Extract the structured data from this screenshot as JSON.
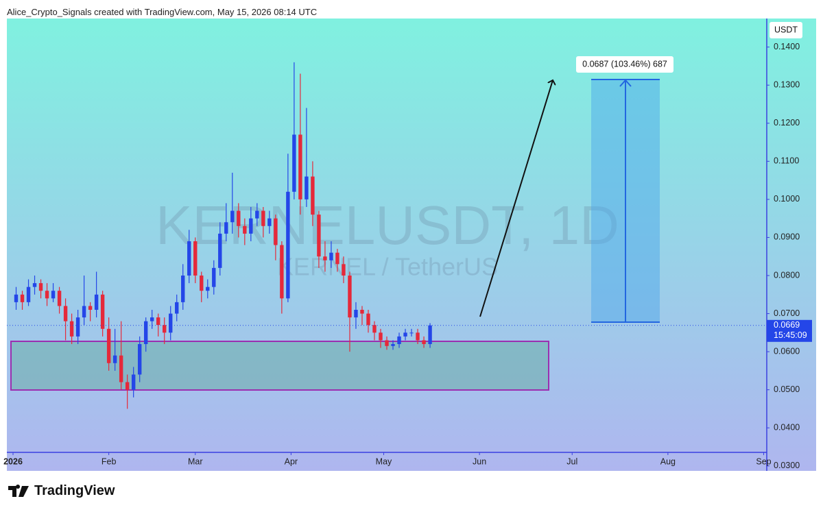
{
  "header": "Alice_Crypto_Signals created with TradingView.com, May 15, 2026 08:14 UTC",
  "logo": "TradingView",
  "chart_data": {
    "type": "candlestick",
    "watermark": "KERNELUSDT, 1D",
    "watermark_sub": "KERNEL / TetherUS",
    "currency": "USDT",
    "countdown": "15:45:09",
    "annotation": "0.0687 (103.46%) 687",
    "up_color": "#2446e8",
    "down_color": "#e5293a",
    "xlim": [
      -2,
      244
    ],
    "xticks": [
      {
        "value": 0,
        "label": "2026"
      },
      {
        "value": 31,
        "label": "Feb"
      },
      {
        "value": 59,
        "label": "Mar"
      },
      {
        "value": 90,
        "label": "Apr"
      },
      {
        "value": 120,
        "label": "May"
      },
      {
        "value": 151,
        "label": "Jun"
      },
      {
        "value": 181,
        "label": "Jul"
      },
      {
        "value": 212,
        "label": "Aug"
      },
      {
        "value": 243,
        "label": "Sep"
      }
    ],
    "ylim": [
      0.0287,
      0.1475
    ],
    "yticks": [
      {
        "value": 0.03,
        "label": "0.0300"
      },
      {
        "value": 0.04,
        "label": "0.0400"
      },
      {
        "value": 0.05,
        "label": "0.0500"
      },
      {
        "value": 0.06,
        "label": "0.0600"
      },
      {
        "value": 0.07,
        "label": "0.0700"
      },
      {
        "value": 0.08,
        "label": "0.0800"
      },
      {
        "value": 0.09,
        "label": "0.0900"
      },
      {
        "value": 0.1,
        "label": "0.1000"
      },
      {
        "value": 0.11,
        "label": "0.1100"
      },
      {
        "value": 0.12,
        "label": "0.1200"
      },
      {
        "value": 0.13,
        "label": "0.1300"
      },
      {
        "value": 0.14,
        "label": "0.1400"
      }
    ],
    "x": [
      1,
      3,
      5,
      7,
      9,
      11,
      13,
      15,
      17,
      19,
      21,
      23,
      25,
      27,
      29,
      31,
      33,
      35,
      37,
      39,
      41,
      43,
      45,
      47,
      49,
      51,
      53,
      55,
      57,
      59,
      61,
      63,
      65,
      67,
      69,
      71,
      73,
      75,
      77,
      79,
      81,
      83,
      85,
      87,
      89,
      91,
      93,
      95,
      97,
      99,
      101,
      103,
      105,
      107,
      109,
      111,
      113,
      115,
      117,
      119,
      121,
      123,
      125,
      127,
      129,
      131,
      133,
      135
    ],
    "open": [
      0.073,
      0.075,
      0.073,
      0.077,
      0.078,
      0.076,
      0.074,
      0.076,
      0.072,
      0.068,
      0.064,
      0.069,
      0.072,
      0.071,
      0.075,
      0.066,
      0.057,
      0.059,
      0.052,
      0.05,
      0.054,
      0.062,
      0.068,
      0.069,
      0.067,
      0.065,
      0.07,
      0.073,
      0.08,
      0.089,
      0.08,
      0.076,
      0.077,
      0.082,
      0.091,
      0.094,
      0.097,
      0.093,
      0.091,
      0.095,
      0.097,
      0.093,
      0.095,
      0.088,
      0.074,
      0.102,
      0.117,
      0.1,
      0.106,
      0.096,
      0.085,
      0.084,
      0.086,
      0.083,
      0.08,
      0.069,
      0.071,
      0.07,
      0.067,
      0.065,
      0.063,
      0.0615,
      0.062,
      0.064,
      0.065,
      0.065,
      0.063,
      0.062
    ],
    "high": [
      0.077,
      0.076,
      0.079,
      0.08,
      0.079,
      0.078,
      0.078,
      0.077,
      0.074,
      0.07,
      0.071,
      0.08,
      0.073,
      0.081,
      0.076,
      0.069,
      0.066,
      0.068,
      0.054,
      0.056,
      0.064,
      0.069,
      0.071,
      0.07,
      0.069,
      0.072,
      0.075,
      0.083,
      0.092,
      0.09,
      0.081,
      0.079,
      0.084,
      0.094,
      0.099,
      0.107,
      0.099,
      0.095,
      0.098,
      0.099,
      0.098,
      0.097,
      0.096,
      0.089,
      0.112,
      0.136,
      0.133,
      0.124,
      0.11,
      0.097,
      0.089,
      0.089,
      0.087,
      0.085,
      0.081,
      0.073,
      0.072,
      0.071,
      0.068,
      0.066,
      0.064,
      0.063,
      0.065,
      0.066,
      0.066,
      0.066,
      0.064,
      0.0675
    ],
    "low": [
      0.071,
      0.071,
      0.072,
      0.075,
      0.074,
      0.072,
      0.073,
      0.07,
      0.063,
      0.062,
      0.062,
      0.067,
      0.068,
      0.069,
      0.064,
      0.055,
      0.055,
      0.05,
      0.045,
      0.048,
      0.052,
      0.06,
      0.066,
      0.064,
      0.062,
      0.063,
      0.068,
      0.071,
      0.078,
      0.078,
      0.073,
      0.074,
      0.075,
      0.08,
      0.089,
      0.091,
      0.09,
      0.088,
      0.089,
      0.093,
      0.09,
      0.091,
      0.084,
      0.07,
      0.073,
      0.1,
      0.096,
      0.098,
      0.093,
      0.082,
      0.081,
      0.082,
      0.081,
      0.078,
      0.06,
      0.066,
      0.067,
      0.065,
      0.063,
      0.061,
      0.0605,
      0.0605,
      0.061,
      0.063,
      0.064,
      0.062,
      0.061,
      0.061
    ],
    "close": [
      0.075,
      0.073,
      0.077,
      0.078,
      0.076,
      0.074,
      0.076,
      0.072,
      0.068,
      0.064,
      0.069,
      0.072,
      0.071,
      0.075,
      0.066,
      0.057,
      0.059,
      0.052,
      0.05,
      0.054,
      0.062,
      0.068,
      0.069,
      0.067,
      0.065,
      0.07,
      0.073,
      0.08,
      0.089,
      0.08,
      0.076,
      0.077,
      0.082,
      0.091,
      0.094,
      0.097,
      0.093,
      0.091,
      0.095,
      0.097,
      0.093,
      0.095,
      0.088,
      0.074,
      0.102,
      0.117,
      0.1,
      0.106,
      0.096,
      0.085,
      0.084,
      0.086,
      0.083,
      0.08,
      0.069,
      0.071,
      0.07,
      0.067,
      0.065,
      0.063,
      0.0615,
      0.062,
      0.064,
      0.065,
      0.065,
      0.063,
      0.062,
      0.0669
    ]
  }
}
